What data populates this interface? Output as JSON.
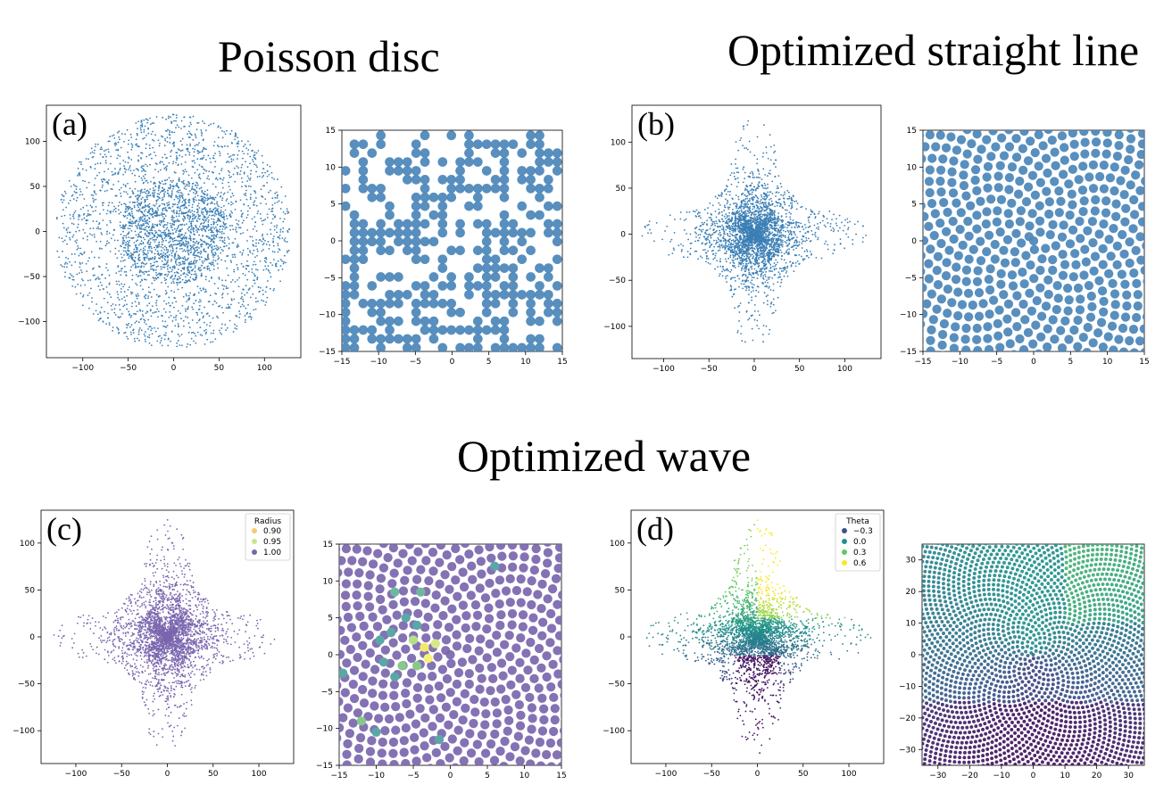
{
  "titles": {
    "poisson": "Poisson disc",
    "straight": "Optimized straight line",
    "wave": "Optimized wave"
  },
  "colors": {
    "blue": "#3b7fb5",
    "purple": "#7a66ae",
    "axis": "#000000"
  },
  "chart_data": [
    {
      "id": "a-overview",
      "panel_label": "(a)",
      "type": "scatter",
      "title": "",
      "xlabel": "",
      "ylabel": "",
      "xlim": [
        -140,
        140
      ],
      "ylim": [
        -140,
        140
      ],
      "xticks": [
        -100,
        -50,
        0,
        50,
        100
      ],
      "yticks": [
        -100,
        -50,
        0,
        50,
        100
      ],
      "x_tick_labels": [
        "−100",
        "−50",
        "0",
        "50",
        "100"
      ],
      "y_tick_labels": [
        "−100",
        "−50",
        "0",
        "50",
        "100"
      ],
      "pattern": "disc",
      "radius": 130,
      "color_scheme": "blue",
      "description_points": "dense cluster at center (0,0), uniform-ish disc to radius ~130"
    },
    {
      "id": "a-zoom",
      "panel_label": "",
      "type": "scatter",
      "xlim": [
        -15,
        15
      ],
      "ylim": [
        -15,
        15
      ],
      "xticks": [
        -15,
        -10,
        -5,
        0,
        5,
        10,
        15
      ],
      "yticks": [
        -15,
        -10,
        -5,
        0,
        5,
        10,
        15
      ],
      "x_tick_labels": [
        "−15",
        "−10",
        "−5",
        "0",
        "5",
        "10",
        "15"
      ],
      "y_tick_labels": [
        "−15",
        "−10",
        "−5",
        "0",
        "5",
        "10",
        "15"
      ],
      "pattern": "grid-random",
      "color_scheme": "blue"
    },
    {
      "id": "b-overview",
      "panel_label": "(b)",
      "type": "scatter",
      "xlim": [
        -135,
        140
      ],
      "ylim": [
        -135,
        140
      ],
      "xticks": [
        -100,
        -50,
        0,
        50,
        100
      ],
      "yticks": [
        -100,
        -50,
        0,
        50,
        100
      ],
      "x_tick_labels": [
        "−100",
        "−50",
        "0",
        "50",
        "100"
      ],
      "y_tick_labels": [
        "−100",
        "−50",
        "0",
        "50",
        "100"
      ],
      "pattern": "star",
      "color_scheme": "blue"
    },
    {
      "id": "b-zoom",
      "panel_label": "",
      "type": "scatter",
      "xlim": [
        -15,
        15
      ],
      "ylim": [
        -15,
        15
      ],
      "xticks": [
        -15,
        -10,
        -5,
        0,
        5,
        10,
        15
      ],
      "yticks": [
        -15,
        -10,
        -5,
        0,
        5,
        10,
        15
      ],
      "x_tick_labels": [
        "−15",
        "−10",
        "−5",
        "0",
        "5",
        "10",
        "15"
      ],
      "y_tick_labels": [
        "−15",
        "−10",
        "−5",
        "0",
        "5",
        "10",
        "15"
      ],
      "pattern": "spiral",
      "color_scheme": "blue"
    },
    {
      "id": "c-overview",
      "panel_label": "(c)",
      "type": "scatter",
      "xlim": [
        -138,
        138
      ],
      "ylim": [
        -135,
        135
      ],
      "xticks": [
        -100,
        -50,
        0,
        50,
        100
      ],
      "yticks": [
        -100,
        -50,
        0,
        50,
        100
      ],
      "x_tick_labels": [
        "−100",
        "−50",
        "0",
        "50",
        "100"
      ],
      "y_tick_labels": [
        "−100",
        "−50",
        "0",
        "50",
        "100"
      ],
      "pattern": "star",
      "color_scheme": "purple",
      "legend": {
        "title": "Radius",
        "position": "top-right",
        "entries": [
          {
            "label": "0.90",
            "color": "#f7c873"
          },
          {
            "label": "0.95",
            "color": "#cde48c"
          },
          {
            "label": "1.00",
            "color": "#7a66ae"
          }
        ]
      }
    },
    {
      "id": "c-zoom",
      "panel_label": "",
      "type": "scatter",
      "xlim": [
        -15,
        15
      ],
      "ylim": [
        -15,
        15
      ],
      "xticks": [
        -15,
        -10,
        -5,
        0,
        5,
        10,
        15
      ],
      "yticks": [
        -15,
        -10,
        -5,
        0,
        5,
        10,
        15
      ],
      "x_tick_labels": [
        "−15",
        "−10",
        "−5",
        "0",
        "5",
        "10",
        "15"
      ],
      "y_tick_labels": [
        "−15",
        "−10",
        "−5",
        "0",
        "5",
        "10",
        "15"
      ],
      "pattern": "spiral-purple",
      "color_scheme": "purple",
      "highlight_points": [
        {
          "x": 6,
          "y": 12,
          "c": "#5aa7a6"
        },
        {
          "x": -7.5,
          "y": 8.5,
          "c": "#6fb7a0"
        },
        {
          "x": -4,
          "y": 8.5,
          "c": "#6fb7a0"
        },
        {
          "x": -6,
          "y": 5,
          "c": "#5aa7a6"
        },
        {
          "x": -4.5,
          "y": 4,
          "c": "#5aa7a6"
        },
        {
          "x": -8,
          "y": 3,
          "c": "#5aa7a6"
        },
        {
          "x": -5,
          "y": 2,
          "c": "#b7df83"
        },
        {
          "x": -3.5,
          "y": 1,
          "c": "#f2e86a"
        },
        {
          "x": -2,
          "y": 1.5,
          "c": "#d6e889"
        },
        {
          "x": -4.5,
          "y": -1.5,
          "c": "#88c88a"
        },
        {
          "x": -6.5,
          "y": -1.5,
          "c": "#88c88a"
        },
        {
          "x": -3,
          "y": -0.5,
          "c": "#f7f27a"
        },
        {
          "x": -9.5,
          "y": 2,
          "c": "#5aa7a6"
        },
        {
          "x": -7.5,
          "y": -3,
          "c": "#5aa7a6"
        },
        {
          "x": -9,
          "y": -1,
          "c": "#5aa7a6"
        },
        {
          "x": -14.5,
          "y": -2.5,
          "c": "#5aa7a6"
        },
        {
          "x": -12,
          "y": -9,
          "c": "#88c88a"
        },
        {
          "x": -10,
          "y": -10.5,
          "c": "#5aa7a6"
        },
        {
          "x": -1.5,
          "y": -11.5,
          "c": "#5aa7a6"
        }
      ]
    },
    {
      "id": "d-overview",
      "panel_label": "(d)",
      "type": "scatter",
      "xlim": [
        -138,
        138
      ],
      "ylim": [
        -135,
        135
      ],
      "xticks": [
        -100,
        -50,
        0,
        50,
        100
      ],
      "yticks": [
        -100,
        -50,
        0,
        50,
        100
      ],
      "x_tick_labels": [
        "−100",
        "−50",
        "0",
        "50",
        "100"
      ],
      "y_tick_labels": [
        "−100",
        "−50",
        "0",
        "50",
        "100"
      ],
      "pattern": "star-theta",
      "color_scheme": "viridis",
      "legend": {
        "title": "Theta",
        "position": "top-right",
        "entries": [
          {
            "label": "−0.3",
            "color": "#3b528b"
          },
          {
            "label": "0.0",
            "color": "#21918c"
          },
          {
            "label": "0.3",
            "color": "#5ec962"
          },
          {
            "label": "0.6",
            "color": "#fde725"
          }
        ]
      }
    },
    {
      "id": "d-zoom",
      "panel_label": "",
      "type": "scatter",
      "xlim": [
        -35,
        35
      ],
      "ylim": [
        -35,
        35
      ],
      "xticks": [
        -30,
        -20,
        -10,
        0,
        10,
        20,
        30
      ],
      "yticks": [
        -30,
        -20,
        -10,
        0,
        10,
        20,
        30
      ],
      "x_tick_labels": [
        "−30",
        "−20",
        "−10",
        "0",
        "10",
        "20",
        "30"
      ],
      "y_tick_labels": [
        "−30",
        "−20",
        "−10",
        "0",
        "10",
        "20",
        "30"
      ],
      "pattern": "spiral-theta",
      "color_scheme": "viridis"
    }
  ]
}
